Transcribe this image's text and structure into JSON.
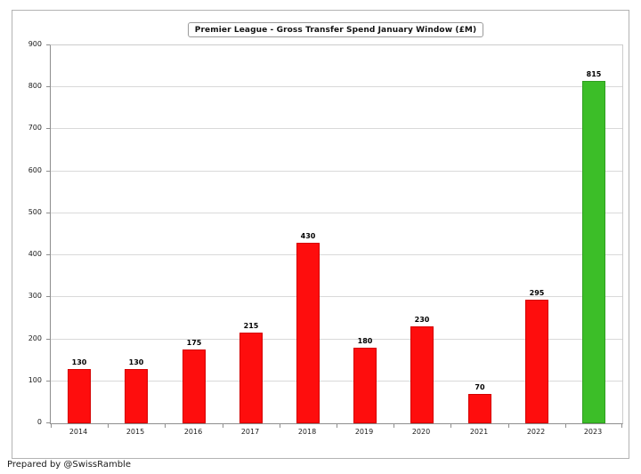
{
  "chart_data": {
    "type": "bar",
    "title": "Premier League - Gross Transfer Spend January Window (£M)",
    "categories": [
      "2014",
      "2015",
      "2016",
      "2017",
      "2018",
      "2019",
      "2020",
      "2021",
      "2022",
      "2023"
    ],
    "values": [
      130,
      130,
      175,
      215,
      430,
      180,
      230,
      70,
      295,
      815
    ],
    "bar_colors": [
      "#fe0d0d",
      "#fe0d0d",
      "#fe0d0d",
      "#fe0d0d",
      "#fe0d0d",
      "#fe0d0d",
      "#fe0d0d",
      "#fe0d0d",
      "#fe0d0d",
      "#3cbe28"
    ],
    "bar_border_colors": [
      "#d40000",
      "#d40000",
      "#d40000",
      "#d40000",
      "#d40000",
      "#d40000",
      "#d40000",
      "#d40000",
      "#d40000",
      "#2f9e1f"
    ],
    "xlabel": "",
    "ylabel": "",
    "ylim": [
      0,
      900
    ],
    "yticks": [
      0,
      100,
      200,
      300,
      400,
      500,
      600,
      700,
      800,
      900
    ],
    "ytick_interval": 100,
    "grid": true,
    "legend_position": "none"
  },
  "footer": {
    "credit": "Prepared by @SwissRamble"
  },
  "colors": {
    "bar_default": "#fe0d0d",
    "bar_highlight": "#3cbe28",
    "gridline": "#d9d9d9",
    "axis": "#8e8e8e",
    "frame_border": "#b3b3b3"
  }
}
